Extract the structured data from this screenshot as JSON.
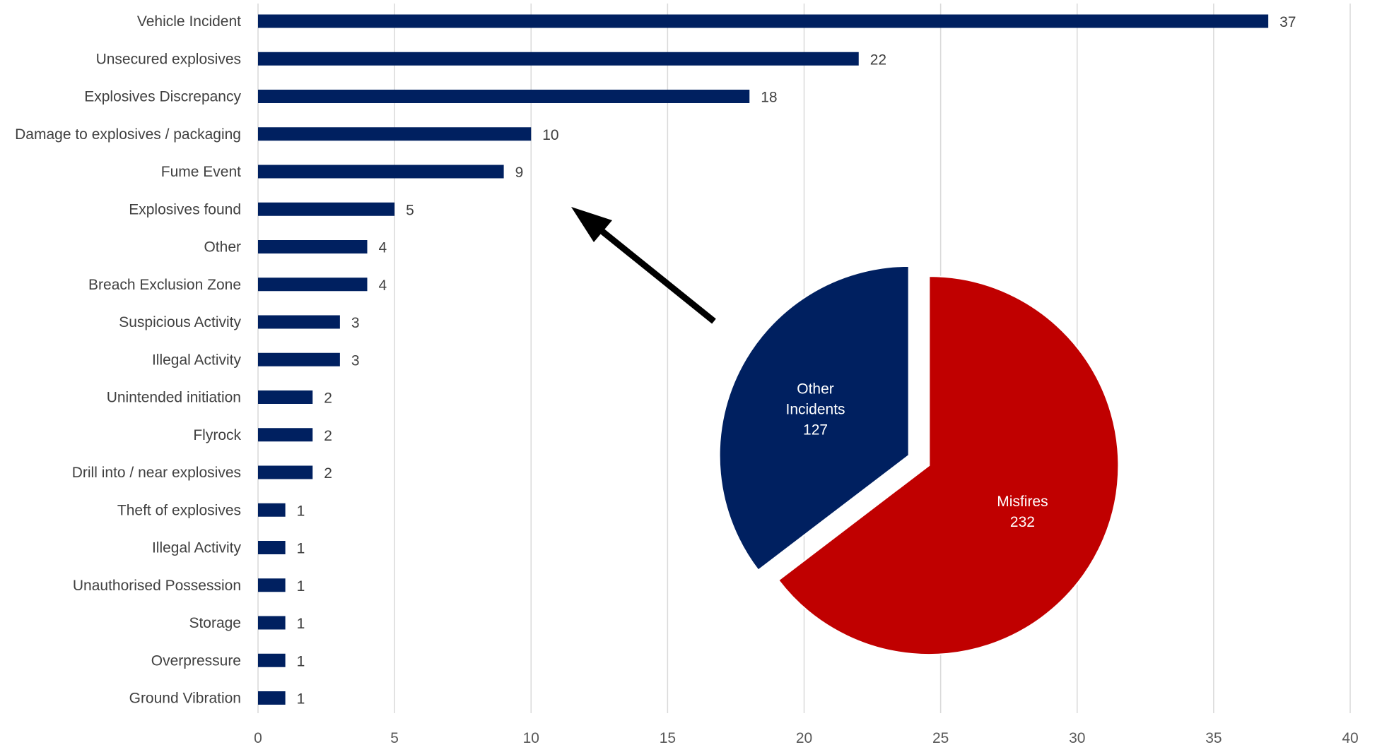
{
  "chart_data": [
    {
      "type": "bar",
      "orientation": "horizontal",
      "categories": [
        "Vehicle Incident",
        "Unsecured explosives",
        "Explosives Discrepancy",
        "Damage to explosives / packaging",
        "Fume Event",
        "Explosives found",
        "Other",
        "Breach Exclusion Zone",
        "Suspicious Activity",
        "Illegal Activity",
        "Unintended initiation",
        "Flyrock",
        "Drill into / near explosives",
        "Theft of explosives",
        "Illegal Activity",
        "Unauthorised Possession",
        "Storage",
        "Overpressure",
        "Ground Vibration"
      ],
      "values": [
        37,
        22,
        18,
        10,
        9,
        5,
        4,
        4,
        3,
        3,
        2,
        2,
        2,
        1,
        1,
        1,
        1,
        1,
        1
      ],
      "xticks": [
        0,
        5,
        10,
        15,
        20,
        25,
        30,
        35,
        40
      ],
      "xlim": [
        0,
        40
      ],
      "grid": true,
      "data_labels": true,
      "bar_color": "#002060"
    },
    {
      "type": "pie",
      "exploded": true,
      "slices": [
        {
          "name": "Other",
          "name_line2": "Incidents",
          "value": 127,
          "color": "#002060"
        },
        {
          "name": "Misfires",
          "value": 232,
          "color": "#C00000"
        }
      ]
    }
  ],
  "annotation": {
    "type": "arrow",
    "from": "pie",
    "to": "bar chart",
    "color": "#000000"
  }
}
